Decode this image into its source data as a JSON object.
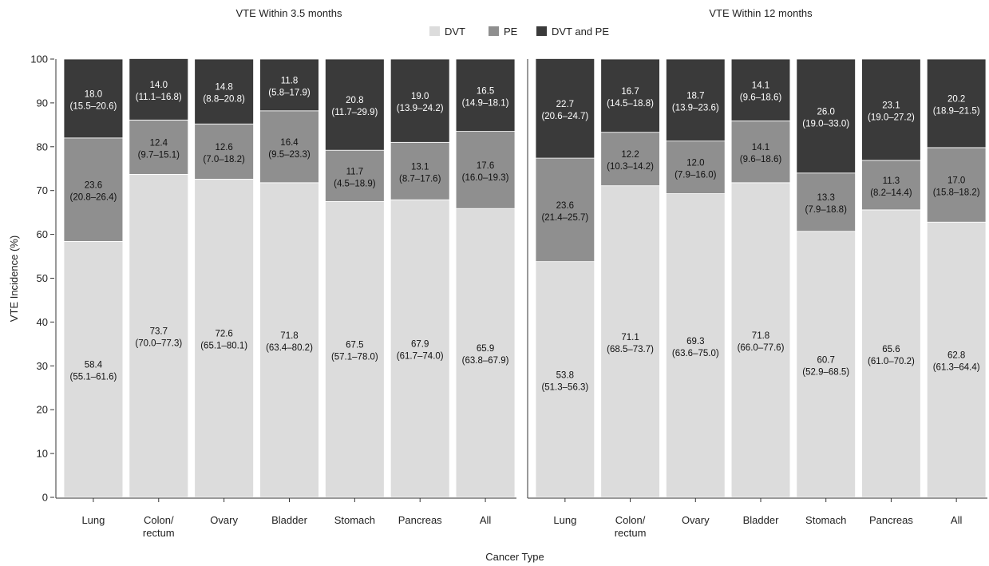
{
  "chart_data": {
    "type": "bar",
    "stacked": true,
    "ylabel": "VTE Incidence (%)",
    "xlabel": "Cancer Type",
    "ylim": [
      0,
      100
    ],
    "yticks": [
      "0",
      "10",
      "20",
      "30",
      "40",
      "50",
      "60",
      "70",
      "80",
      "90",
      "100"
    ],
    "legend": {
      "placement": "top-center",
      "items": [
        {
          "name": "DVT",
          "color": "#dcdcdc"
        },
        {
          "name": "PE",
          "color": "#8f8f8f"
        },
        {
          "name": "DVT and PE",
          "color": "#3a3a3a"
        }
      ]
    },
    "panels": [
      {
        "title": "VTE Within 3.5 months",
        "categories": [
          {
            "lines": [
              "Lung"
            ]
          },
          {
            "lines": [
              "Colon/",
              "rectum"
            ]
          },
          {
            "lines": [
              "Ovary"
            ]
          },
          {
            "lines": [
              "Bladder"
            ]
          },
          {
            "lines": [
              "Stomach"
            ]
          },
          {
            "lines": [
              "Pancreas"
            ]
          },
          {
            "lines": [
              "All"
            ]
          }
        ],
        "series": [
          {
            "name": "DVT",
            "values": [
              58.4,
              73.7,
              72.6,
              71.8,
              67.5,
              67.9,
              65.9
            ],
            "labels": [
              [
                "58.4",
                "(55.1–61.6)"
              ],
              [
                "73.7",
                "(70.0–77.3)"
              ],
              [
                "72.6",
                "(65.1–80.1)"
              ],
              [
                "71.8",
                "(63.4–80.2)"
              ],
              [
                "67.5",
                "(57.1–78.0)"
              ],
              [
                "67.9",
                "(61.7–74.0)"
              ],
              [
                "65.9",
                "(63.8–67.9)"
              ]
            ]
          },
          {
            "name": "PE",
            "values": [
              23.6,
              12.4,
              12.6,
              16.4,
              11.7,
              13.1,
              17.6
            ],
            "labels": [
              [
                "23.6",
                "(20.8–26.4)"
              ],
              [
                "12.4",
                "(9.7–15.1)"
              ],
              [
                "12.6",
                "(7.0–18.2)"
              ],
              [
                "16.4",
                "(9.5–23.3)"
              ],
              [
                "11.7",
                "(4.5–18.9)"
              ],
              [
                "13.1",
                "(8.7–17.6)"
              ],
              [
                "17.6",
                "(16.0–19.3)"
              ]
            ]
          },
          {
            "name": "DVT and PE",
            "values": [
              18.0,
              14.0,
              14.8,
              11.8,
              20.8,
              19.0,
              16.5
            ],
            "labels": [
              [
                "18.0",
                "(15.5–20.6)"
              ],
              [
                "14.0",
                "(11.1–16.8)"
              ],
              [
                "14.8",
                "(8.8–20.8)"
              ],
              [
                "11.8",
                "(5.8–17.9)"
              ],
              [
                "20.8",
                "(11.7–29.9)"
              ],
              [
                "19.0",
                "(13.9–24.2)"
              ],
              [
                "16.5",
                "(14.9–18.1)"
              ]
            ]
          }
        ]
      },
      {
        "title": "VTE Within 12 months",
        "categories": [
          {
            "lines": [
              "Lung"
            ]
          },
          {
            "lines": [
              "Colon/",
              "rectum"
            ]
          },
          {
            "lines": [
              "Ovary"
            ]
          },
          {
            "lines": [
              "Bladder"
            ]
          },
          {
            "lines": [
              "Stomach"
            ]
          },
          {
            "lines": [
              "Pancreas"
            ]
          },
          {
            "lines": [
              "All"
            ]
          }
        ],
        "series": [
          {
            "name": "DVT",
            "values": [
              53.8,
              71.1,
              69.3,
              71.8,
              60.7,
              65.6,
              62.8
            ],
            "labels": [
              [
                "53.8",
                "(51.3–56.3)"
              ],
              [
                "71.1",
                "(68.5–73.7)"
              ],
              [
                "69.3",
                "(63.6–75.0)"
              ],
              [
                "71.8",
                "(66.0–77.6)"
              ],
              [
                "60.7",
                "(52.9–68.5)"
              ],
              [
                "65.6",
                "(61.0–70.2)"
              ],
              [
                "62.8",
                "(61.3–64.4)"
              ]
            ]
          },
          {
            "name": "PE",
            "values": [
              23.6,
              12.2,
              12.0,
              14.1,
              13.3,
              11.3,
              17.0
            ],
            "labels": [
              [
                "23.6",
                "(21.4–25.7)"
              ],
              [
                "12.2",
                "(10.3–14.2)"
              ],
              [
                "12.0",
                "(7.9–16.0)"
              ],
              [
                "14.1",
                "(9.6–18.6)"
              ],
              [
                "13.3",
                "(7.9–18.8)"
              ],
              [
                "11.3",
                "(8.2–14.4)"
              ],
              [
                "17.0",
                "(15.8–18.2)"
              ]
            ]
          },
          {
            "name": "DVT and PE",
            "values": [
              22.7,
              16.7,
              18.7,
              14.1,
              26.0,
              23.1,
              20.2
            ],
            "labels": [
              [
                "22.7",
                "(20.6–24.7)"
              ],
              [
                "16.7",
                "(14.5–18.8)"
              ],
              [
                "18.7",
                "(13.9–23.6)"
              ],
              [
                "14.1",
                "(9.6–18.6)"
              ],
              [
                "26.0",
                "(19.0–33.0)"
              ],
              [
                "23.1",
                "(19.0–27.2)"
              ],
              [
                "20.2",
                "(18.9–21.5)"
              ]
            ]
          }
        ]
      }
    ]
  }
}
